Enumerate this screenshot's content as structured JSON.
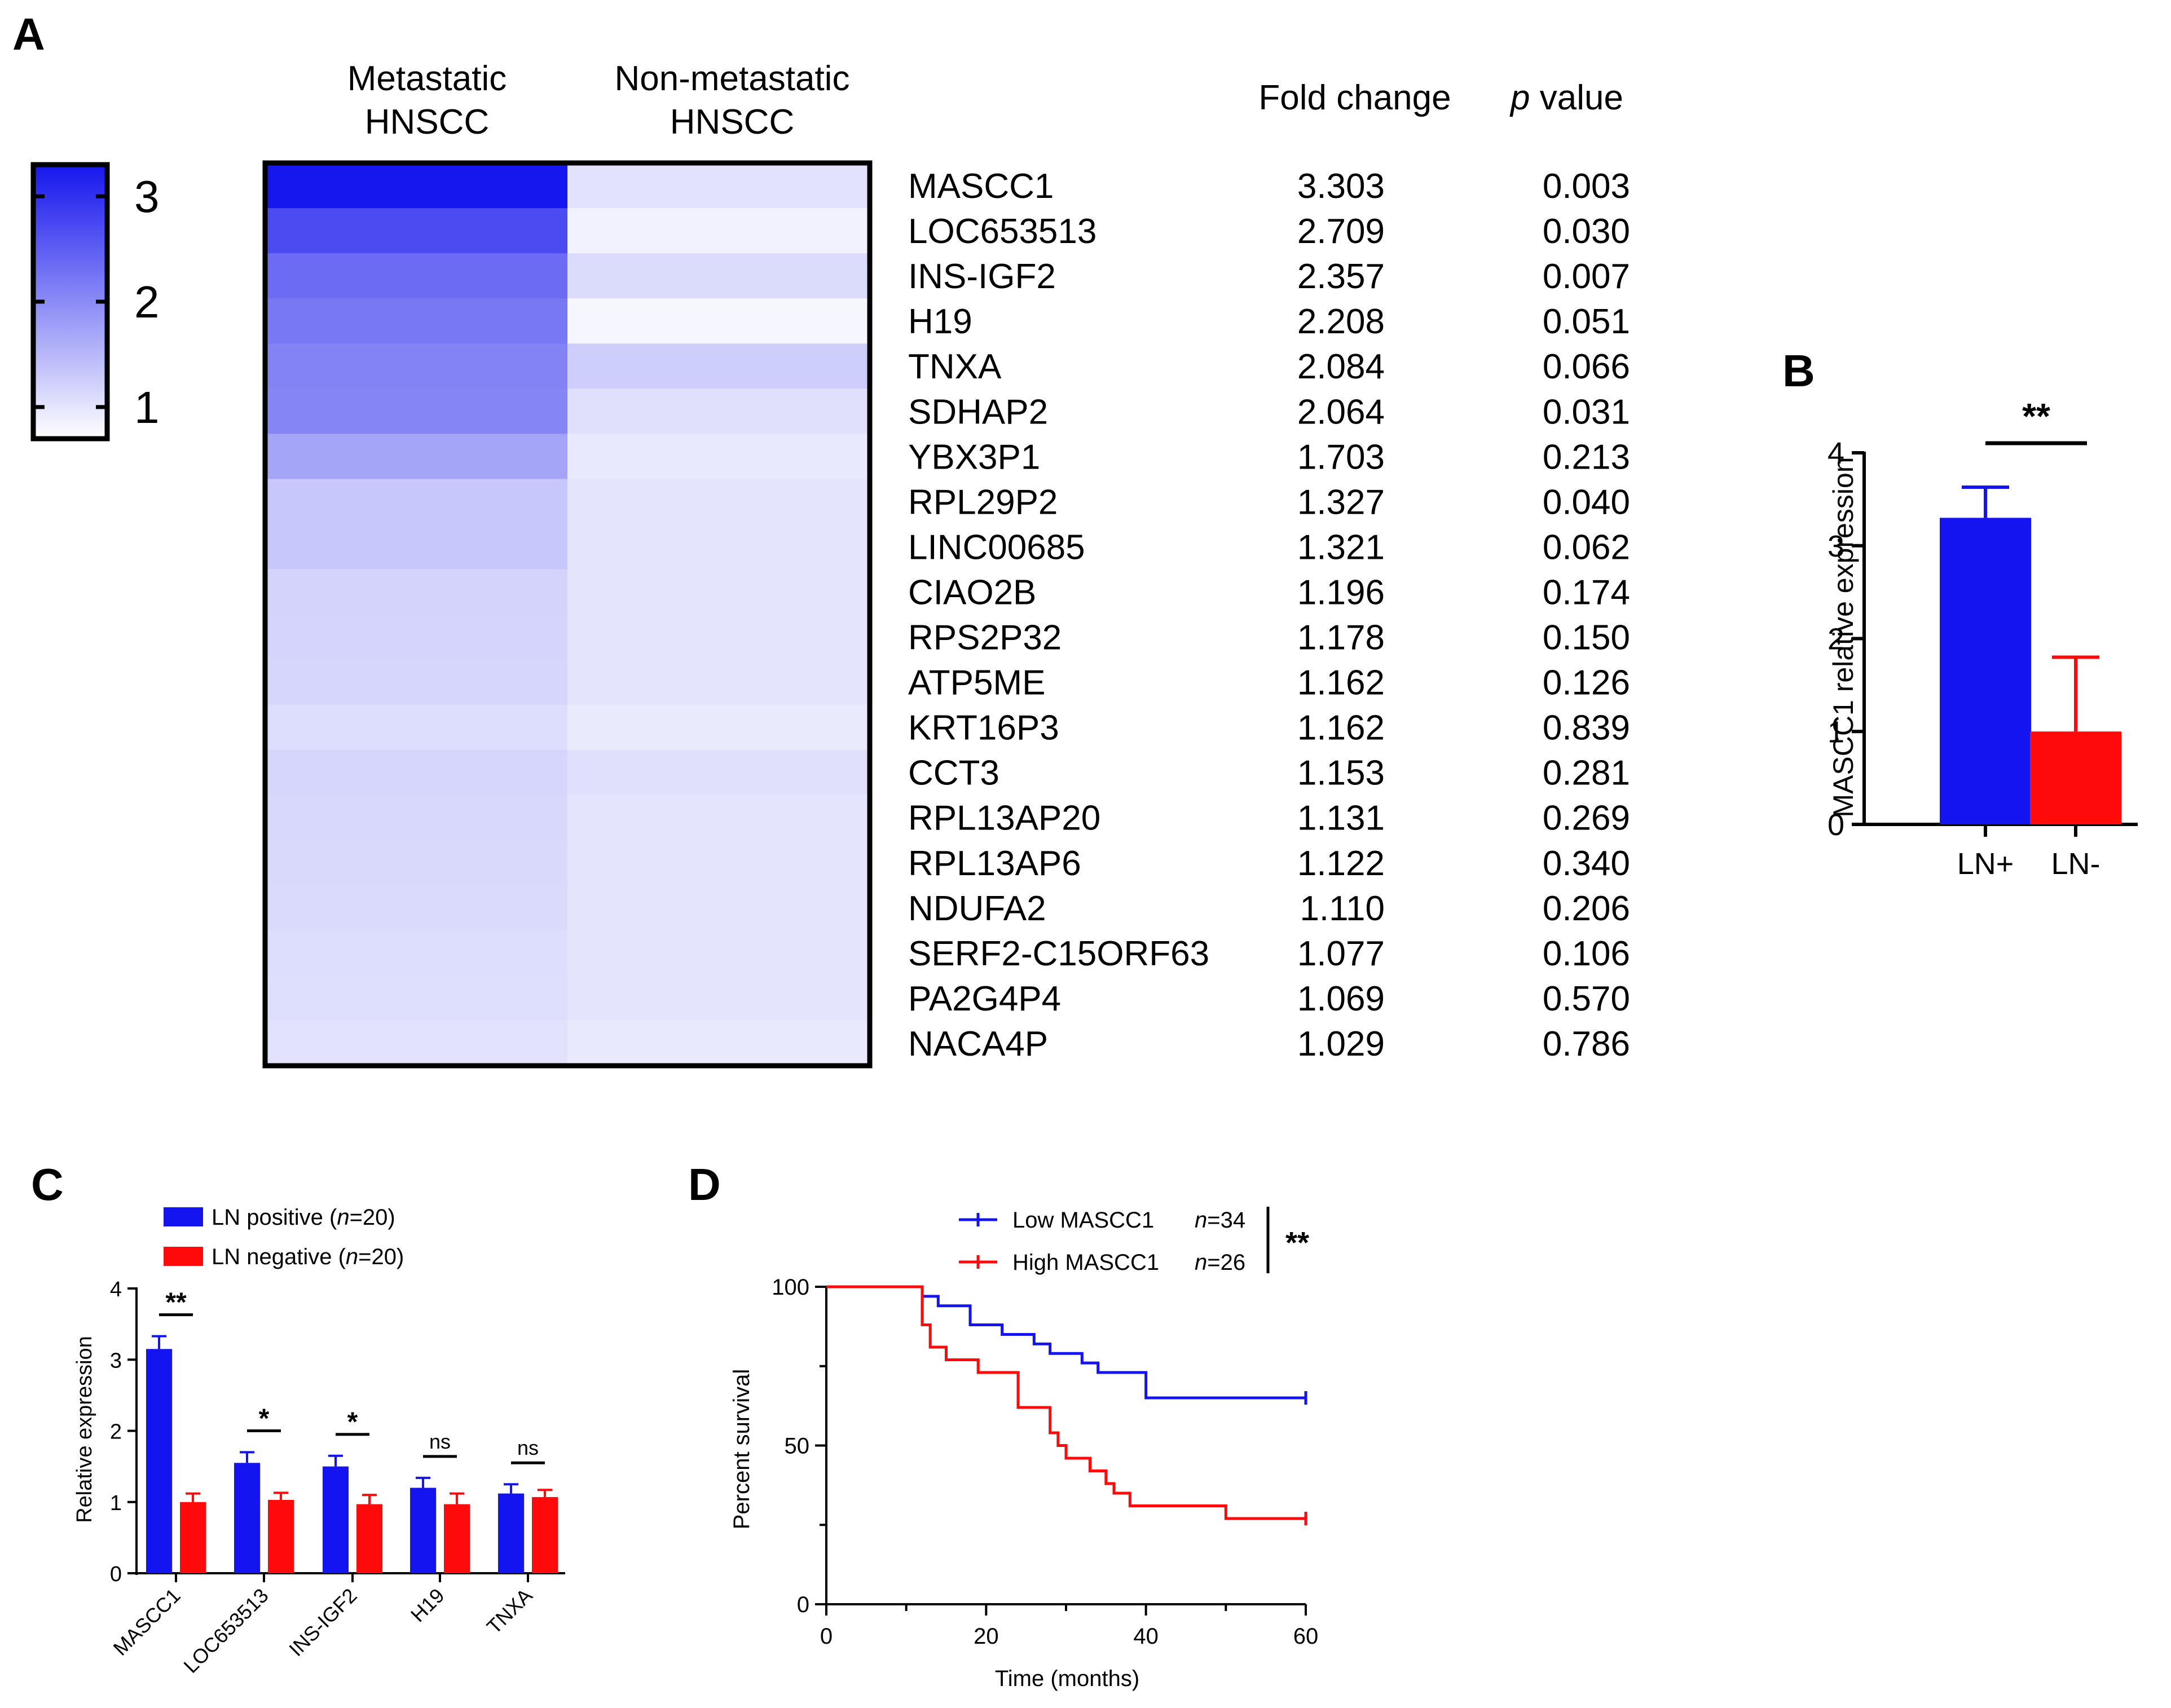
{
  "panel_labels": {
    "a": "A",
    "b": "B",
    "c": "C",
    "d": "D"
  },
  "colors": {
    "blue": "#1414f0",
    "red": "#ff0a0a",
    "heat_high": "#1616ee",
    "heat_low": "#ffffff"
  },
  "chart_data": [
    {
      "panel": "A",
      "type": "heatmap",
      "columns": [
        {
          "line1": "Metastatic",
          "line2": "HNSCC"
        },
        {
          "line1": "Non-metastatic",
          "line2": "HNSCC"
        }
      ],
      "table_headers": {
        "fold_change": "Fold change",
        "p_italic": "p",
        "p_rest": " value"
      },
      "colorbar": {
        "ticks": [
          "3",
          "2",
          "1"
        ],
        "tick_values": [
          3,
          2,
          1
        ],
        "range": [
          0.7,
          3.3
        ]
      },
      "rows": [
        {
          "gene": "MASCC1",
          "fold": "3.303",
          "p": "0.003",
          "met": 3.303,
          "non": 1.02
        },
        {
          "gene": "LOC653513",
          "fold": "2.709",
          "p": "0.030",
          "met": 2.709,
          "non": 0.85
        },
        {
          "gene": "INS-IGF2",
          "fold": "2.357",
          "p": "0.007",
          "met": 2.357,
          "non": 1.1
        },
        {
          "gene": "H19",
          "fold": "2.208",
          "p": "0.051",
          "met": 2.208,
          "non": 0.8
        },
        {
          "gene": "TNXA",
          "fold": "2.084",
          "p": "0.066",
          "met": 2.084,
          "non": 1.25
        },
        {
          "gene": "SDHAP2",
          "fold": "2.064",
          "p": "0.031",
          "met": 2.064,
          "non": 1.05
        },
        {
          "gene": "YBX3P1",
          "fold": "1.703",
          "p": "0.213",
          "met": 1.703,
          "non": 0.95
        },
        {
          "gene": "RPL29P2",
          "fold": "1.327",
          "p": "0.040",
          "met": 1.327,
          "non": 1.0
        },
        {
          "gene": "LINC00685",
          "fold": "1.321",
          "p": "0.062",
          "met": 1.321,
          "non": 1.0
        },
        {
          "gene": "CIAO2B",
          "fold": "1.196",
          "p": "0.174",
          "met": 1.196,
          "non": 1.0
        },
        {
          "gene": "RPS2P32",
          "fold": "1.178",
          "p": "0.150",
          "met": 1.178,
          "non": 1.0
        },
        {
          "gene": "ATP5ME",
          "fold": "1.162",
          "p": "0.126",
          "met": 1.162,
          "non": 1.0
        },
        {
          "gene": "KRT16P3",
          "fold": "1.162",
          "p": "0.839",
          "met": 1.08,
          "non": 0.93
        },
        {
          "gene": "CCT3",
          "fold": "1.153",
          "p": "0.281",
          "met": 1.153,
          "non": 1.05
        },
        {
          "gene": "RPL13AP20",
          "fold": "1.131",
          "p": "0.269",
          "met": 1.131,
          "non": 1.0
        },
        {
          "gene": "RPL13AP6",
          "fold": "1.122",
          "p": "0.340",
          "met": 1.122,
          "non": 1.0
        },
        {
          "gene": "NDUFA2",
          "fold": "1.110",
          "p": "0.206",
          "met": 1.11,
          "non": 1.0
        },
        {
          "gene": "SERF2-C15ORF63",
          "fold": "1.077",
          "p": "0.106",
          "met": 1.077,
          "non": 1.0
        },
        {
          "gene": "PA2G4P4",
          "fold": "1.069",
          "p": "0.570",
          "met": 1.069,
          "non": 1.0
        },
        {
          "gene": "NACA4P",
          "fold": "1.029",
          "p": "0.786",
          "met": 1.029,
          "non": 0.95
        }
      ]
    },
    {
      "panel": "B",
      "type": "bar",
      "categories": [
        "LN+",
        "LN-"
      ],
      "values": [
        3.3,
        1.0
      ],
      "errors": [
        0.33,
        0.8
      ],
      "colors": [
        "#1414f0",
        "#ff0a0a"
      ],
      "ylabel": "MASCC1 relative expression",
      "ylim": [
        0,
        4
      ],
      "yticks": [
        "0",
        "1",
        "2",
        "3",
        "4"
      ],
      "significance": "**"
    },
    {
      "panel": "C",
      "type": "bar",
      "categories": [
        "MASCC1",
        "LOC653513",
        "INS-IGF2",
        "H19",
        "TNXA"
      ],
      "series": [
        {
          "name_prefix": "LN positive (",
          "name_italic": "n",
          "name_suffix": "=20)",
          "color": "#1414f0",
          "values": [
            3.15,
            1.55,
            1.5,
            1.2,
            1.12
          ],
          "errors": [
            0.18,
            0.15,
            0.15,
            0.14,
            0.13
          ]
        },
        {
          "name_prefix": "LN negative (",
          "name_italic": "n",
          "name_suffix": "=20)",
          "color": "#ff0a0a",
          "values": [
            1.0,
            1.03,
            0.97,
            0.97,
            1.07
          ],
          "errors": [
            0.12,
            0.1,
            0.13,
            0.15,
            0.1
          ]
        }
      ],
      "ylabel": "Relative expression",
      "ylim": [
        0,
        4
      ],
      "yticks": [
        "0",
        "1",
        "2",
        "3",
        "4"
      ],
      "significance": [
        "**",
        "*",
        "*",
        "ns",
        "ns"
      ]
    },
    {
      "panel": "D",
      "type": "line",
      "subtype": "kaplan-meier",
      "xlabel": "Time (months)",
      "ylabel": "Percent survival",
      "xlim": [
        0,
        60
      ],
      "ylim": [
        0,
        100
      ],
      "xticks": [
        "0",
        "20",
        "40",
        "60"
      ],
      "yticks": [
        "0",
        "50",
        "100"
      ],
      "significance": "**",
      "series": [
        {
          "name": "Low MASCC1",
          "n_label": "n",
          "n_value": "=34",
          "color": "#1414f0",
          "x": [
            0,
            12,
            14,
            18,
            22,
            26,
            28,
            32,
            34,
            38,
            40,
            60
          ],
          "y": [
            100,
            97,
            94,
            88,
            85,
            82,
            79,
            76,
            73,
            73,
            65,
            65
          ]
        },
        {
          "name": "High MASCC1",
          "n_label": "n",
          "n_value": "=26",
          "color": "#ff0a0a",
          "x": [
            0,
            12,
            13,
            15,
            19,
            24,
            28,
            29,
            30,
            33,
            35,
            36,
            38,
            50,
            60
          ],
          "y": [
            100,
            88,
            81,
            77,
            73,
            62,
            54,
            50,
            46,
            42,
            38,
            35,
            31,
            27,
            27
          ]
        }
      ]
    }
  ]
}
